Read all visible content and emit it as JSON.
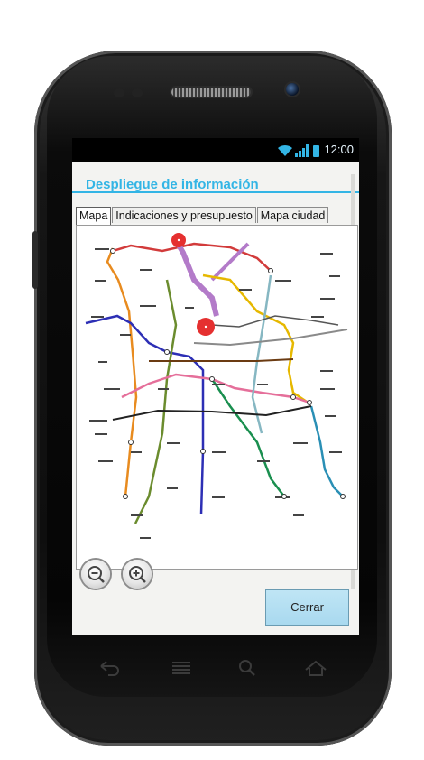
{
  "status_bar": {
    "time": "12:00"
  },
  "dialog": {
    "title": "Despliegue de información",
    "tabs": [
      {
        "label": "Mapa",
        "active": true
      },
      {
        "label": "Indicaciones y presupuesto",
        "active": false
      },
      {
        "label": "Mapa ciudad",
        "active": false
      }
    ],
    "close_label": "Cerrar"
  },
  "map": {
    "marker_color": "#e53030",
    "line_colors": {
      "line1": "#e56f9a",
      "line2": "#2d2fb5",
      "line3": "#6b8c2e",
      "line4": "#86b7c2",
      "line5": "#f2c700",
      "line7": "#e88b1f",
      "line8": "#1a8f4f",
      "line9": "#6b3b12",
      "lineA": "#8a4aa0",
      "lineB": "#7a7a7a",
      "lineb12": "#b8a23a",
      "lineRed": "#d23b3b"
    }
  },
  "accent_color": "#33b5e5",
  "icons": [
    "wifi-icon",
    "signal-icon",
    "battery-icon",
    "zoom-out-icon",
    "zoom-in-icon",
    "back-icon",
    "menu-icon",
    "search-icon",
    "home-icon"
  ]
}
